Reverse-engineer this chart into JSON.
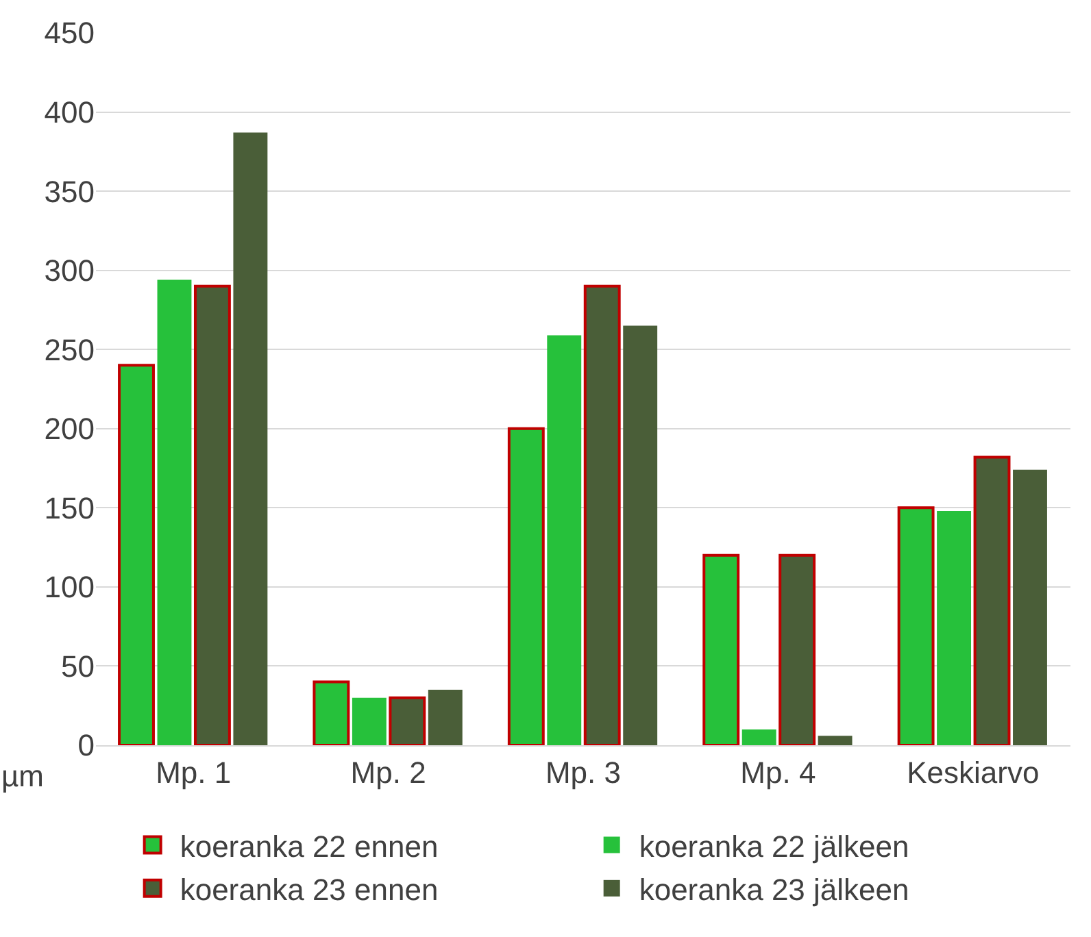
{
  "chart_data": {
    "type": "bar",
    "ylabel": "µm",
    "categories": [
      "Mp. 1",
      "Mp. 2",
      "Mp. 3",
      "Mp. 4",
      "Keskiarvo"
    ],
    "series": [
      {
        "name": "koeranka 22 ennen",
        "color": "#26c13b",
        "values": [
          240,
          40,
          200,
          120,
          150
        ]
      },
      {
        "name": "koeranka 22 jälkeen",
        "color": "#26c13b",
        "values": [
          294,
          30,
          259,
          10,
          148
        ]
      },
      {
        "name": "koeranka 23 ennen",
        "color": "#4a5e38",
        "values": [
          290,
          30,
          290,
          120,
          182
        ]
      },
      {
        "name": "koeranka 23 jälkeen",
        "color": "#4a5e38",
        "values": [
          387,
          35,
          265,
          6,
          174
        ]
      }
    ],
    "ylim": [
      0,
      450
    ],
    "yticks": [
      0,
      50,
      100,
      150,
      200,
      250,
      300,
      350,
      400,
      450
    ],
    "grid": "y",
    "legend": "bottom"
  }
}
